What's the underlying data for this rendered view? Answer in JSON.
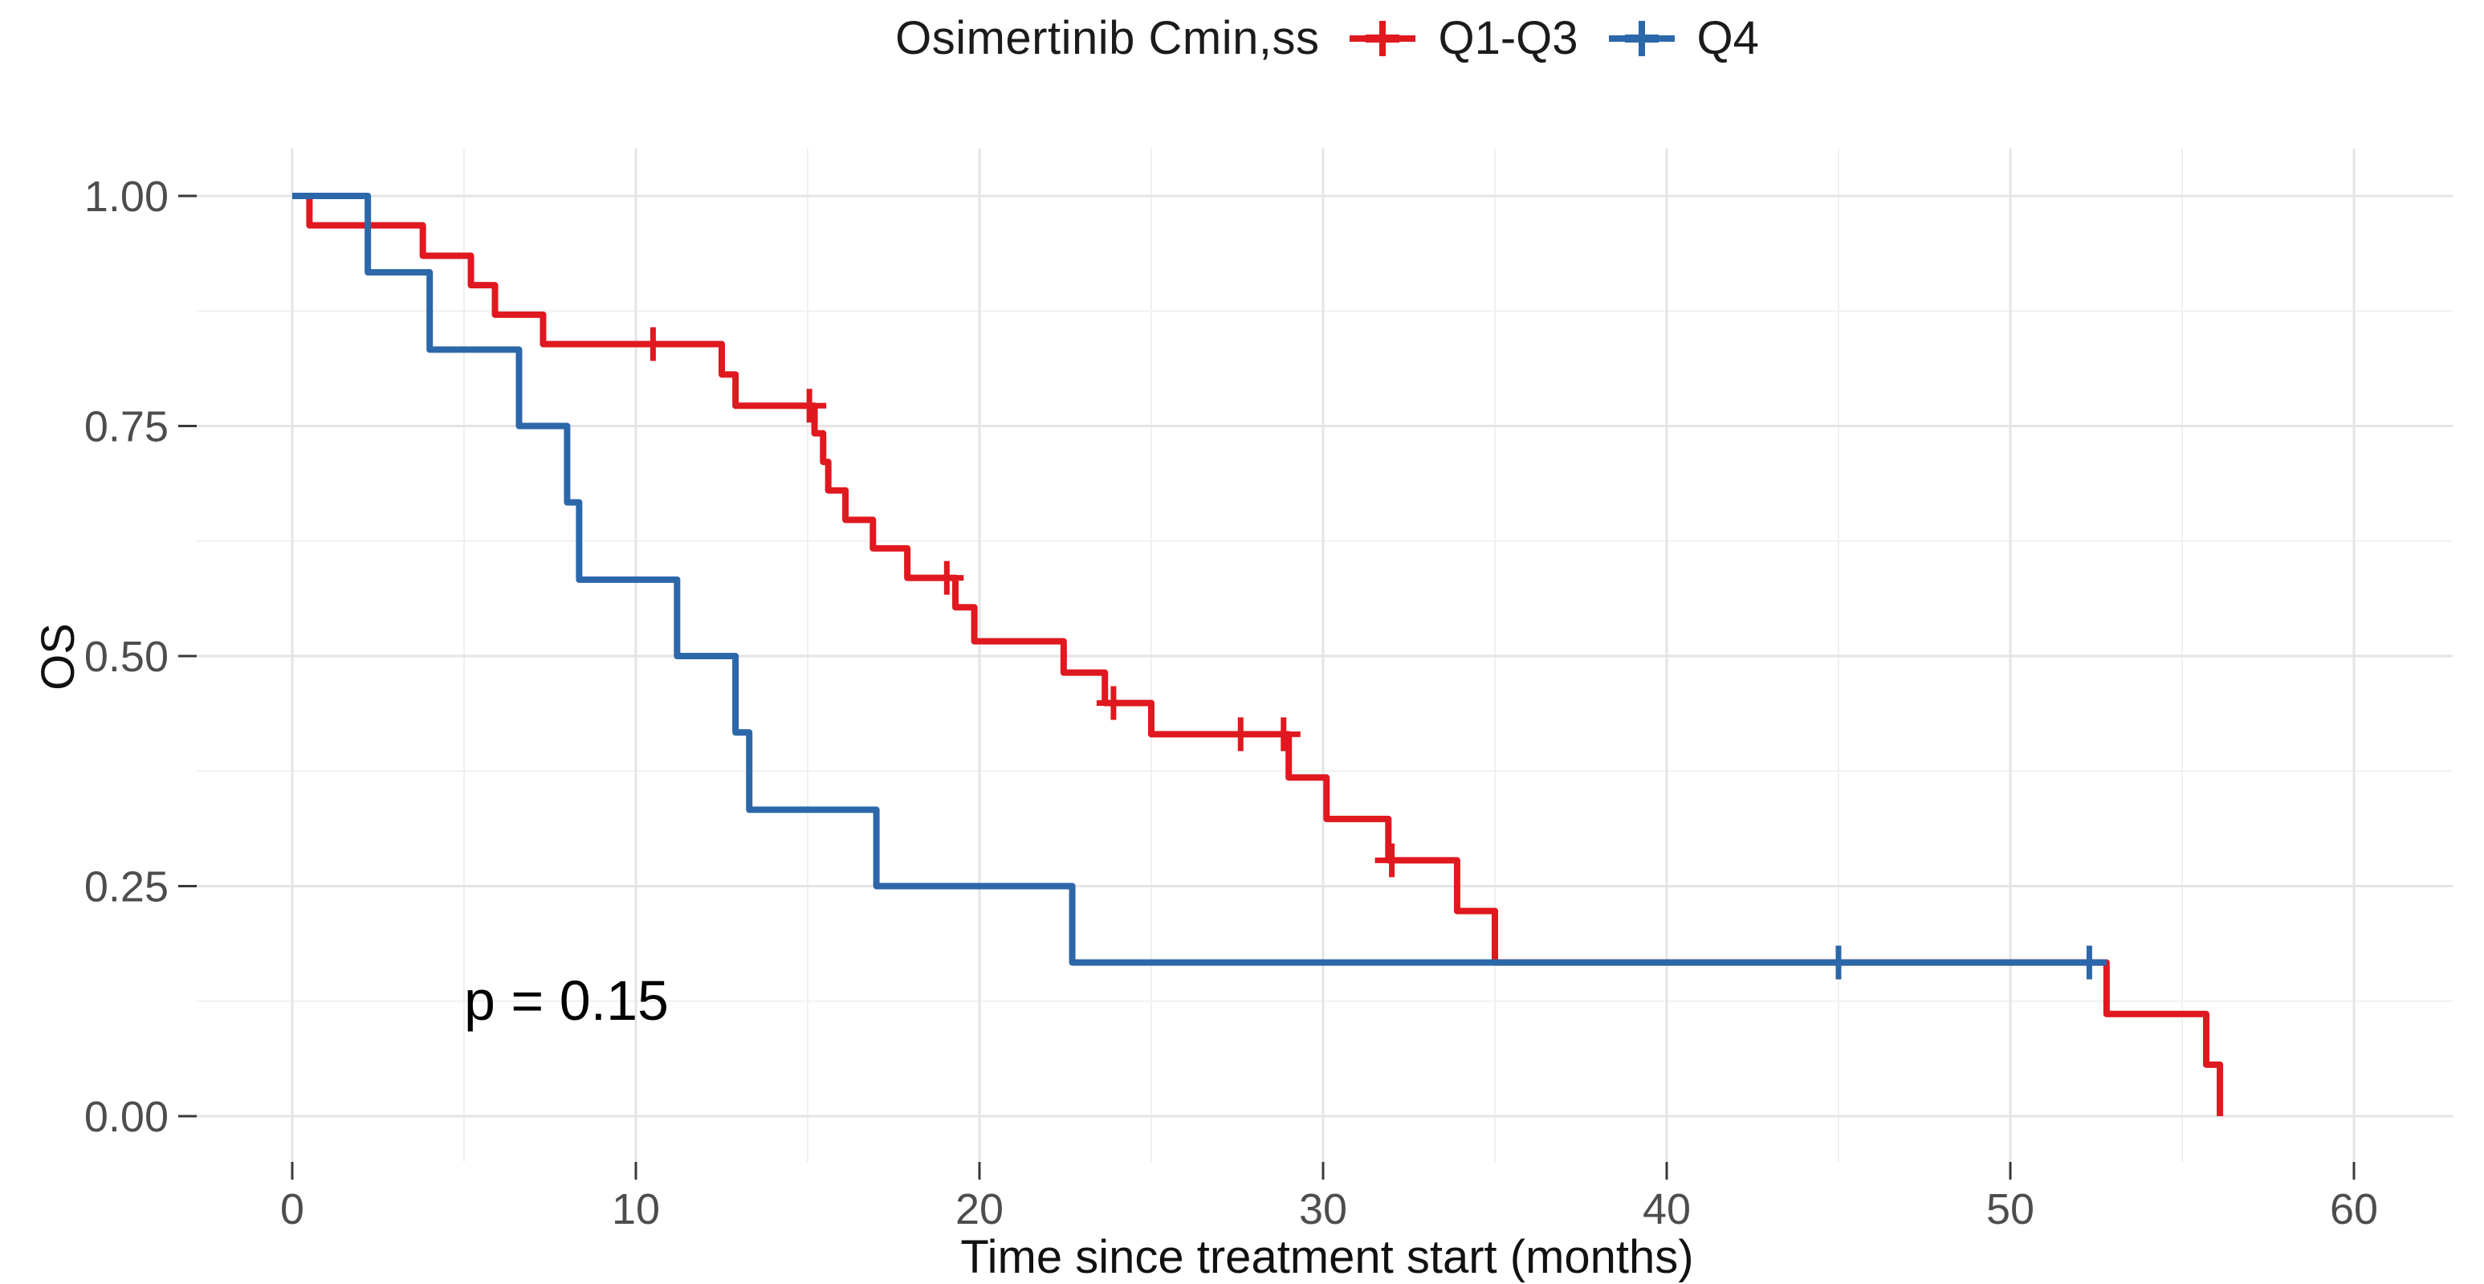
{
  "chart_data": {
    "type": "line",
    "subtype": "kaplan_meier_step",
    "title": "Osimertinib Cmin,ss",
    "xlabel": "Time since treatment start (months)",
    "ylabel": "OS",
    "p_annotation": "p = 0.15",
    "legend_position": "top",
    "grid": true,
    "xlim": [
      0,
      60
    ],
    "ylim": [
      0.0,
      1.0
    ],
    "x_ticks": [
      0,
      10,
      20,
      30,
      40,
      50,
      60
    ],
    "x_minor_ticks": [
      5,
      15,
      25,
      35,
      45,
      55
    ],
    "y_tick_labels": [
      "1.00",
      "0.75",
      "0.50",
      "0.25",
      "0.00"
    ],
    "y_tick_values": [
      1.0,
      0.75,
      0.5,
      0.25,
      0.0
    ],
    "y_minor_ticks": [
      0.875,
      0.625,
      0.375,
      0.125
    ],
    "series": [
      {
        "name": "Q1-Q3",
        "color": "#E0181F",
        "start": [
          0,
          1.0
        ],
        "steps": [
          [
            0.5,
            0.968
          ],
          [
            3.8,
            0.935
          ],
          [
            5.2,
            0.903
          ],
          [
            5.9,
            0.871
          ],
          [
            7.3,
            0.839
          ],
          [
            12.5,
            0.806
          ],
          [
            12.9,
            0.772
          ],
          [
            15.2,
            0.742
          ],
          [
            15.45,
            0.711
          ],
          [
            15.6,
            0.68
          ],
          [
            16.1,
            0.648
          ],
          [
            16.9,
            0.617
          ],
          [
            17.9,
            0.585
          ],
          [
            19.3,
            0.553
          ],
          [
            19.85,
            0.516
          ],
          [
            22.45,
            0.482
          ],
          [
            23.65,
            0.449
          ],
          [
            25.0,
            0.415
          ],
          [
            29.0,
            0.368
          ],
          [
            30.1,
            0.323
          ],
          [
            31.9,
            0.278
          ],
          [
            33.9,
            0.223
          ],
          [
            35.0,
            0.167
          ],
          [
            52.8,
            0.111
          ],
          [
            55.7,
            0.056
          ],
          [
            56.1,
            0.0
          ]
        ],
        "censors": [
          [
            10.5,
            0.839
          ],
          [
            15.05,
            0.772
          ],
          [
            19.05,
            0.585
          ],
          [
            23.9,
            0.449
          ],
          [
            27.6,
            0.415
          ],
          [
            28.85,
            0.415
          ],
          [
            32.0,
            0.278
          ]
        ],
        "end_time": 56.1
      },
      {
        "name": "Q4",
        "color": "#2C67AA",
        "start": [
          0,
          1.0
        ],
        "steps": [
          [
            2.2,
            0.917
          ],
          [
            4.0,
            0.833
          ],
          [
            6.6,
            0.75
          ],
          [
            8.0,
            0.667
          ],
          [
            8.35,
            0.583
          ],
          [
            11.2,
            0.5
          ],
          [
            12.9,
            0.417
          ],
          [
            13.3,
            0.333
          ],
          [
            17.0,
            0.25
          ],
          [
            22.7,
            0.167
          ]
        ],
        "censors": [
          [
            45.0,
            0.167
          ],
          [
            52.3,
            0.167
          ]
        ],
        "end_time": 52.8
      }
    ]
  }
}
